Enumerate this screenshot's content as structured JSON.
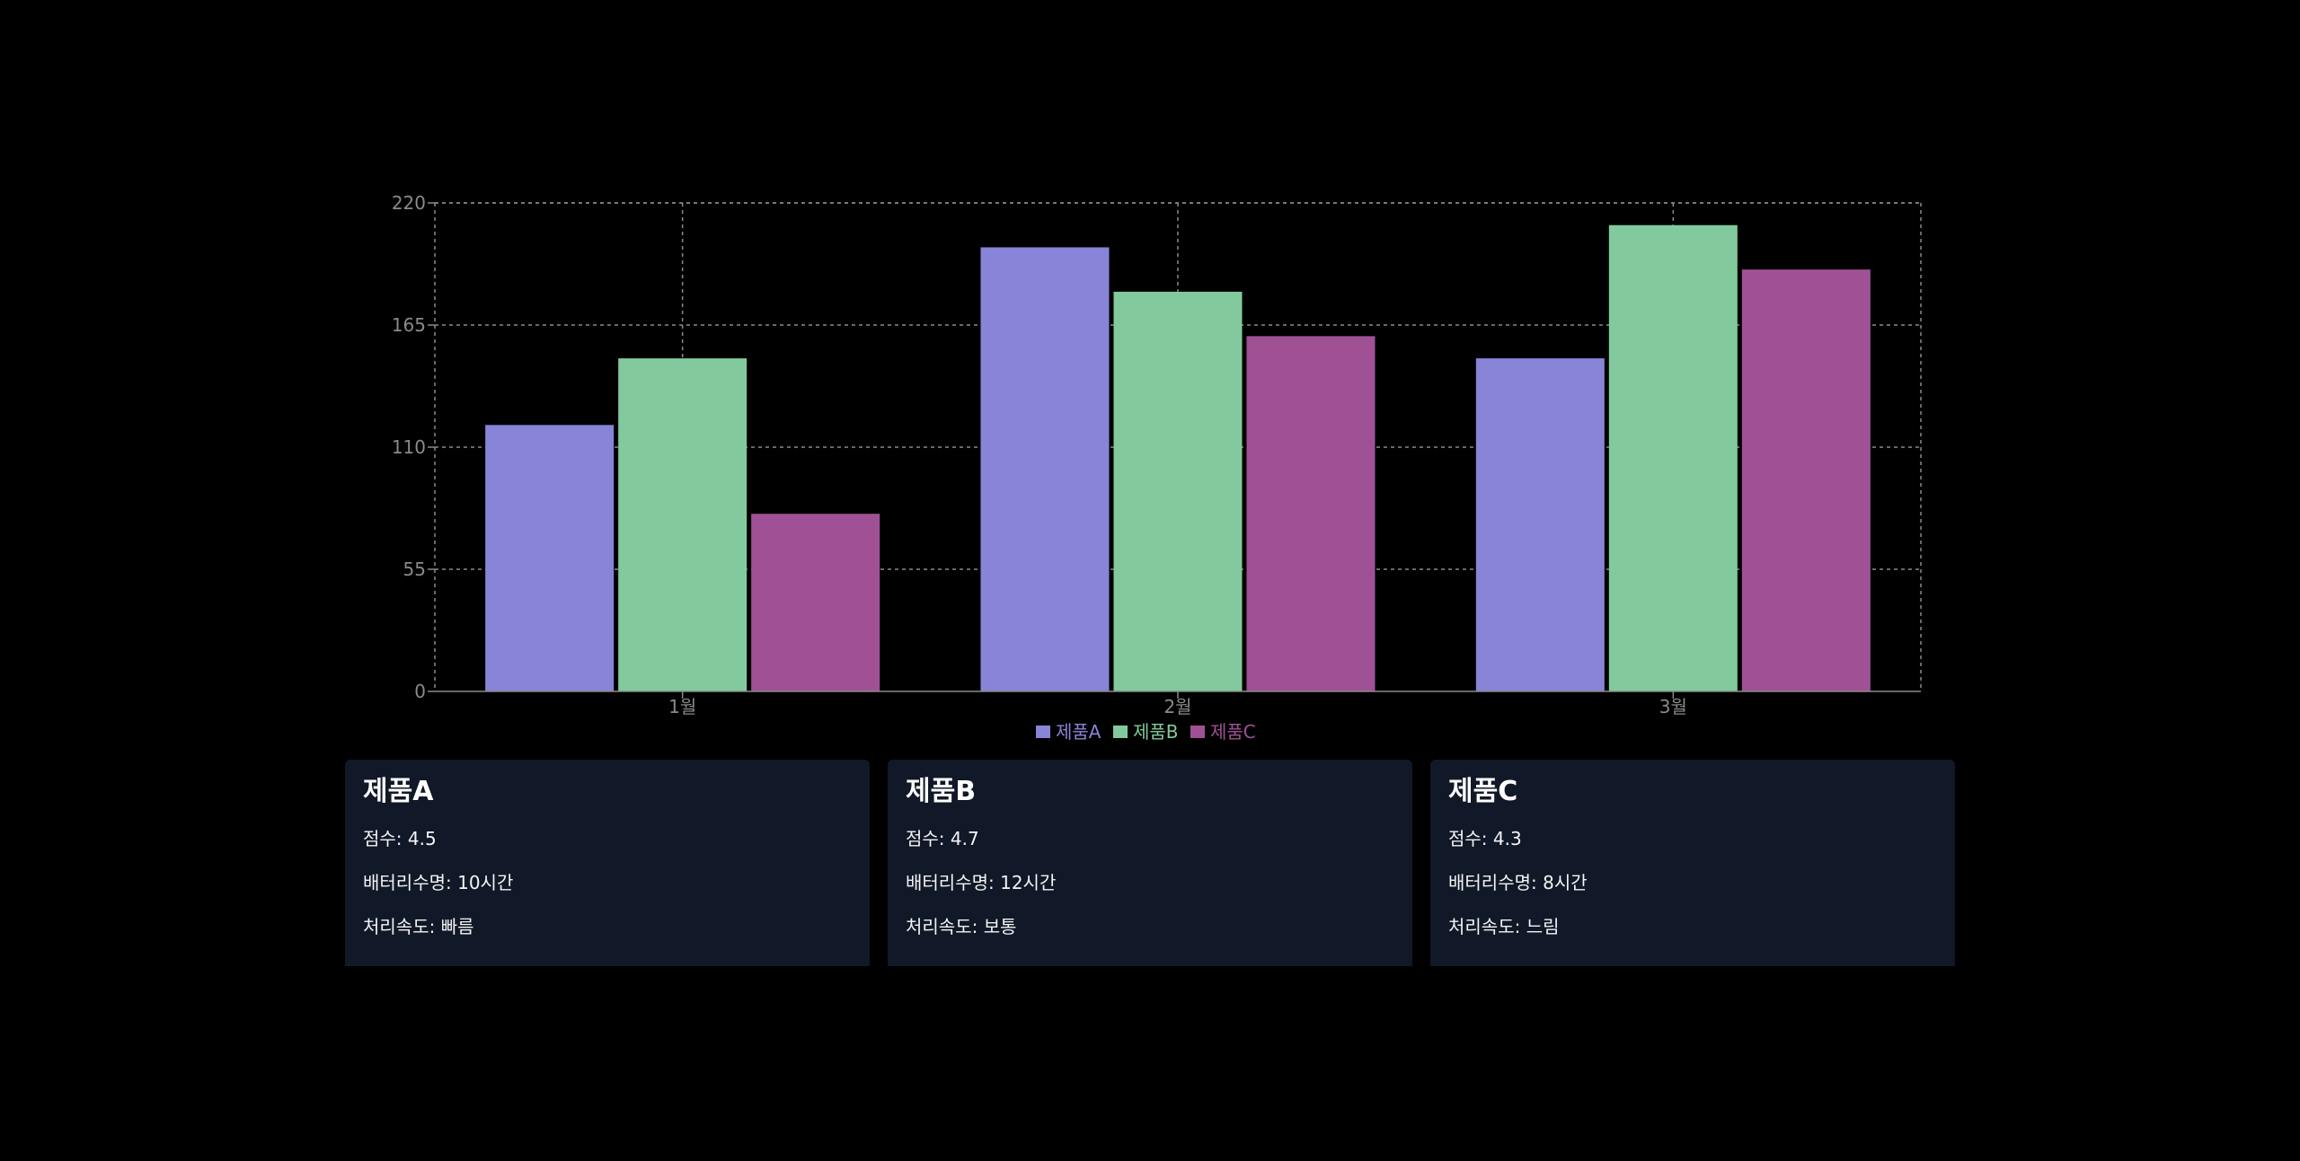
{
  "chart_data": {
    "type": "bar",
    "categories": [
      "1월",
      "2월",
      "3월"
    ],
    "series": [
      {
        "name": "제품A",
        "values": [
          120,
          200,
          150
        ],
        "color": "#8884d8"
      },
      {
        "name": "제품B",
        "values": [
          150,
          180,
          210
        ],
        "color": "#82ca9d"
      },
      {
        "name": "제품C",
        "values": [
          80,
          160,
          190
        ],
        "color": "#a05195"
      }
    ],
    "yticks": [
      0,
      55,
      110,
      165,
      220
    ],
    "ylim": [
      0,
      220
    ],
    "grid": true,
    "legend": "bottom-center",
    "title": "",
    "xlabel": "",
    "ylabel": ""
  },
  "cards": [
    {
      "title": "제품A",
      "score": "점수: 4.5",
      "battery": "배터리수명: 10시간",
      "speed": "처리속도: 빠름"
    },
    {
      "title": "제품B",
      "score": "점수: 4.7",
      "battery": "배터리수명: 12시간",
      "speed": "처리속도: 보통"
    },
    {
      "title": "제품C",
      "score": "점수: 4.3",
      "battery": "배터리수명: 8시간",
      "speed": "처리속도: 느림"
    }
  ]
}
